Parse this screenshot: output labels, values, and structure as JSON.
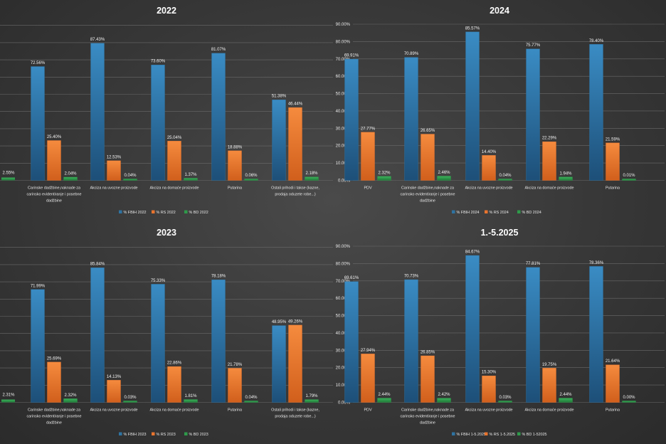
{
  "colors": {
    "fbih": "#2e73a2",
    "rs": "#e8742e",
    "bd": "#2e9a4a",
    "grid": "#6a6a6a",
    "text": "#e8e8e8"
  },
  "chart_data": [
    {
      "type": "bar",
      "title": "2022",
      "show_y_axis": false,
      "ylim": [
        0,
        100
      ],
      "categories": [
        [
          "Carinske dadžbine,naknade za",
          "carinsko evidentiranje i posebne",
          "dadžbine"
        ],
        [
          "Akciza na uvozne proizvode"
        ],
        [
          "Akciza na domaće proizvode"
        ],
        [
          "Putarina"
        ],
        [
          "Ostali prihodi i takse (kazne,",
          "prodaja oduzete robe...)"
        ]
      ],
      "series": [
        {
          "name": "% FBIH 2022",
          "color": "fbih",
          "values": [
            72.56,
            87.43,
            73.6,
            81.07,
            51.38
          ],
          "labels": [
            "72.56%",
            "87.43%",
            "73.60%",
            "81.07%",
            "51.38%"
          ]
        },
        {
          "name": "% RS 2022",
          "color": "rs",
          "values": [
            25.4,
            12.53,
            25.04,
            18.88,
            46.44
          ],
          "labels": [
            "25.40%",
            "12.53%",
            "25.04%",
            "18.88%",
            "46.44%"
          ]
        },
        {
          "name": "% BD 2022",
          "color": "bd",
          "values": [
            2.04,
            0.04,
            1.37,
            0.06,
            2.18
          ],
          "labels": [
            "2.04%",
            "0.04%",
            "1.37%",
            "0.06%",
            "2.18%"
          ]
        }
      ],
      "extra_label": "2.55%"
    },
    {
      "type": "bar",
      "title": "2024",
      "show_y_axis": true,
      "ylim": [
        0,
        90
      ],
      "yticks": [
        "0.00%",
        "10.00%",
        "20.00%",
        "30.00%",
        "40.00%",
        "50.00%",
        "60.00%",
        "70.00%",
        "80.00%",
        "90.00%"
      ],
      "categories": [
        [
          "PDV"
        ],
        [
          "Carinske dadžbine,naknade za",
          "carinsko evidentiranje i posebne",
          "dadžbine"
        ],
        [
          "Akciza na uvozne proizvode"
        ],
        [
          "Akciza na domaće proizvode"
        ],
        [
          "Putarina"
        ]
      ],
      "series": [
        {
          "name": "% FBIH 2024",
          "color": "fbih",
          "values": [
            69.91,
            70.89,
            85.57,
            75.77,
            78.4
          ],
          "labels": [
            "69.91%",
            "70.89%",
            "85.57%",
            "75.77%",
            "78.40%"
          ]
        },
        {
          "name": "% RS 2024",
          "color": "rs",
          "values": [
            27.77,
            26.65,
            14.4,
            22.29,
            21.59
          ],
          "labels": [
            "27.77%",
            "26.65%",
            "14.40%",
            "22.29%",
            "21.59%"
          ]
        },
        {
          "name": "% BD 2024",
          "color": "bd",
          "values": [
            2.32,
            2.46,
            0.04,
            1.94,
            0.01
          ],
          "labels": [
            "2.32%",
            "2.46%",
            "0.04%",
            "1.94%",
            "0.01%"
          ]
        }
      ]
    },
    {
      "type": "bar",
      "title": "2023",
      "show_y_axis": false,
      "ylim": [
        0,
        100
      ],
      "categories": [
        [
          "Carinske dadžbine,naknade za",
          "carinsko evidentiranje i posebne",
          "dadžbine"
        ],
        [
          "Akciza na uvozne proizvode"
        ],
        [
          "Akciza na domaće proizvode"
        ],
        [
          "Putarina"
        ],
        [
          "Ostali prihodi i takse (kazne,",
          "prodaja oduzete robe...)"
        ]
      ],
      "series": [
        {
          "name": "% FBIH 2023",
          "color": "fbih",
          "values": [
            71.99,
            85.84,
            75.33,
            78.18,
            48.95
          ],
          "labels": [
            "71.99%",
            "85.84%",
            "75.33%",
            "78.18%",
            "48.95%"
          ]
        },
        {
          "name": "% RS 2023",
          "color": "rs",
          "values": [
            25.69,
            14.13,
            22.86,
            21.78,
            49.26
          ],
          "labels": [
            "25.69%",
            "14.13%",
            "22.86%",
            "21.78%",
            "49.26%"
          ]
        },
        {
          "name": "% BD 2023",
          "color": "bd",
          "values": [
            2.32,
            0.03,
            1.81,
            0.04,
            1.79
          ],
          "labels": [
            "2.32%",
            "0.03%",
            "1.81%",
            "0.04%",
            "1.79%"
          ]
        }
      ],
      "extra_label": "2.31%"
    },
    {
      "type": "bar",
      "title": "1.-5.2025",
      "show_y_axis": true,
      "ylim": [
        0,
        90
      ],
      "yticks": [
        "0.00%",
        "10.00%",
        "20.00%",
        "30.00%",
        "40.00%",
        "50.00%",
        "60.00%",
        "70.00%",
        "80.00%",
        "90.00%"
      ],
      "categories": [
        [
          "PDV"
        ],
        [
          "Carinske dadžbine,naknade za",
          "carinsko evidentiranje i posebne",
          "dadžbine"
        ],
        [
          "Akciza na uvozne proizvode"
        ],
        [
          "Akciza na domaće proizvode"
        ],
        [
          "Putarina"
        ]
      ],
      "series": [
        {
          "name": "% FBIH 1-5.2025",
          "color": "fbih",
          "values": [
            69.61,
            70.73,
            84.67,
            77.81,
            78.36
          ],
          "labels": [
            "69.61%",
            "70.73%",
            "84.67%",
            "77.81%",
            "78.36%"
          ]
        },
        {
          "name": "% RS 1-5.2025",
          "color": "rs",
          "values": [
            27.94,
            26.85,
            15.3,
            19.75,
            21.64
          ],
          "labels": [
            "27.94%",
            "26.85%",
            "15.30%",
            "19.75%",
            "21.64%"
          ]
        },
        {
          "name": "% BD 1-52025",
          "color": "bd",
          "values": [
            2.44,
            2.42,
            0.03,
            2.44,
            0.0
          ],
          "labels": [
            "2.44%",
            "2.42%",
            "0.03%",
            "2.44%",
            "0.00%"
          ]
        }
      ]
    }
  ]
}
